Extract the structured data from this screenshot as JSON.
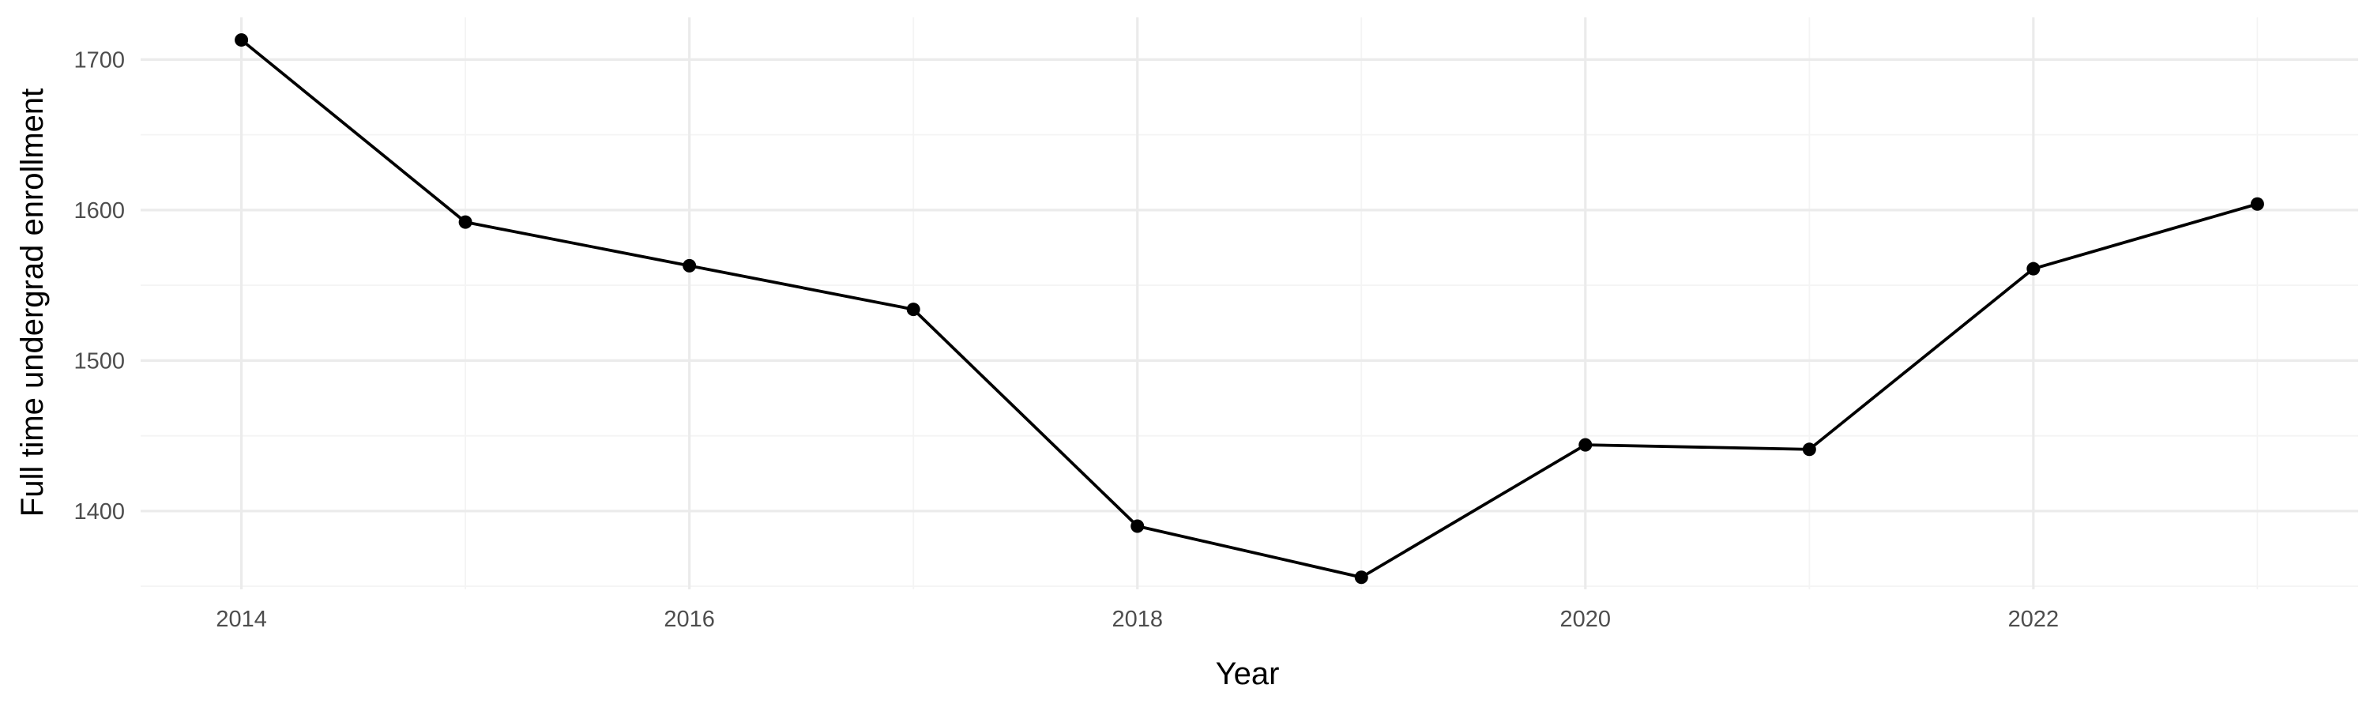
{
  "chart_data": {
    "type": "line",
    "x": [
      2014,
      2015,
      2016,
      2017,
      2018,
      2019,
      2020,
      2021,
      2022,
      2023
    ],
    "series": [
      {
        "values": [
          1713,
          1592,
          1563,
          1534,
          1390,
          1356,
          1444,
          1441,
          1561,
          1604
        ]
      }
    ],
    "xlabel": "Year",
    "ylabel": "Full time undergrad enrollment",
    "x_ticks": [
      "2014",
      "2016",
      "2018",
      "2020",
      "2022"
    ],
    "y_ticks": [
      "1400",
      "1500",
      "1600",
      "1700"
    ],
    "xlim": [
      2013.55,
      2023.45
    ],
    "ylim": [
      1348,
      1728
    ],
    "grid": true,
    "markers": true,
    "line_color": "#000000",
    "grid_color": "#ebebeb"
  }
}
